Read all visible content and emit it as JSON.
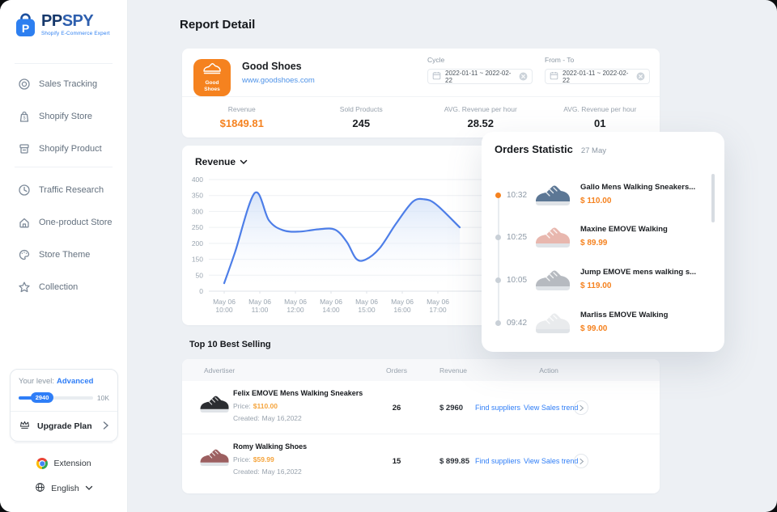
{
  "colors": {
    "accent_orange": "#f5821f",
    "link_blue": "#2f7ef7",
    "background": "#edf0f4",
    "chart_line": "#4d7ee8"
  },
  "sidebar": {
    "brand": {
      "name_bold": "PP",
      "name_light": "SPY",
      "tagline": "Shopify E-Commerce Expert"
    },
    "nav_primary": [
      {
        "label": "Sales Tracking"
      },
      {
        "label": "Shopify Store"
      },
      {
        "label": "Shopify Product"
      }
    ],
    "nav_secondary": [
      {
        "label": "Traffic Research"
      },
      {
        "label": "One-product Store"
      },
      {
        "label": "Store Theme"
      },
      {
        "label": "Collection"
      }
    ],
    "level_card": {
      "prefix": "Your level:",
      "level": "Advanced",
      "progress_label": "2940",
      "max_label": "10K",
      "upgrade": "Upgrade Plan"
    },
    "extension_label": "Extension",
    "language_label": "English"
  },
  "page": {
    "title": "Report Detail"
  },
  "store": {
    "badge": {
      "line1": "Good",
      "line2": "Shoes"
    },
    "name": "Good Shoes",
    "url": "www.goodshoes.com",
    "cycle_label": "Cycle",
    "cycle_value": "2022-01-11 ~ 2022-02-22",
    "fromto_label": "From - To",
    "fromto_value": "2022-01-11 ~ 2022-02-22",
    "stats": [
      {
        "label": "Revenue",
        "value": "$1849.81"
      },
      {
        "label": "Sold Products",
        "value": "245"
      },
      {
        "label": "AVG. Revenue per hour",
        "value": "28.52"
      },
      {
        "label": "AVG. Revenue per hour",
        "value": "01"
      }
    ]
  },
  "chart_data": {
    "type": "area",
    "title": "Revenue",
    "ylim": [
      0,
      400
    ],
    "grid": true,
    "legend": "none",
    "y_ticks": [
      400,
      350,
      300,
      250,
      200,
      150,
      50,
      0
    ],
    "x_ticks": [
      [
        "May 06",
        "10:00"
      ],
      [
        "May 06",
        "11:00"
      ],
      [
        "May 06",
        "12:00"
      ],
      [
        "May 06",
        "14:00"
      ],
      [
        "May 06",
        "15:00"
      ],
      [
        "May 06",
        "16:00"
      ],
      [
        "May 06",
        "17:00"
      ]
    ],
    "points": [
      {
        "t": 0.0,
        "v": 25
      },
      {
        "t": 0.045,
        "v": 170
      },
      {
        "t": 0.13,
        "v": 358
      },
      {
        "t": 0.19,
        "v": 272
      },
      {
        "t": 0.25,
        "v": 241
      },
      {
        "t": 0.32,
        "v": 237
      },
      {
        "t": 0.4,
        "v": 244
      },
      {
        "t": 0.47,
        "v": 243
      },
      {
        "t": 0.52,
        "v": 205
      },
      {
        "t": 0.56,
        "v": 152
      },
      {
        "t": 0.6,
        "v": 148
      },
      {
        "t": 0.66,
        "v": 185
      },
      {
        "t": 0.73,
        "v": 262
      },
      {
        "t": 0.8,
        "v": 330
      },
      {
        "t": 0.85,
        "v": 338
      },
      {
        "t": 0.9,
        "v": 322
      },
      {
        "t": 1.0,
        "v": 250
      }
    ],
    "line_color": "#4d7ee8",
    "fill_top_color": "#cfdff7"
  },
  "orders": {
    "title": "Orders Statistic",
    "date": "27 May",
    "items": [
      {
        "time": "10:32",
        "name": "Gallo Mens Walking Sneakers...",
        "price": "$ 110.00",
        "dot_color": "#f5821f",
        "shoe_color": "#5c7795"
      },
      {
        "time": "10:25",
        "name": "Maxine EMOVE Walking",
        "price": "$ 89.99",
        "dot_color": "#c9d0d7",
        "shoe_color": "#e8b7ae"
      },
      {
        "time": "10:05",
        "name": "Jump EMOVE mens walking s...",
        "price": "$ 119.00",
        "dot_color": "#c9d0d7",
        "shoe_color": "#b6bac0"
      },
      {
        "time": "09:42",
        "name": "Marliss EMOVE Walking",
        "price": "$ 99.00",
        "dot_color": "#c9d0d7",
        "shoe_color": "#e9ebed"
      }
    ]
  },
  "best": {
    "title": "Top 10 Best Selling",
    "columns": [
      "Advertiser",
      "Orders",
      "Revenue",
      "Action"
    ],
    "price_prefix": "Price:",
    "created_prefix": "Created:",
    "rows": [
      {
        "name": "Felix EMOVE Mens Walking Sneakers",
        "price": "$110.00",
        "created": "May 16,2022",
        "orders": "26",
        "revenue": "$ 2960",
        "link1": "Find suppliers",
        "link2": "View Sales trend",
        "shoe_color": "#2b2d31"
      },
      {
        "name": "Romy Walking Shoes",
        "price": "$59.99",
        "created": "May 16,2022",
        "orders": "15",
        "revenue": "$ 899.85",
        "link1": "Find suppliers",
        "link2": "View Sales trend",
        "shoe_color": "#9c5f60"
      }
    ]
  }
}
